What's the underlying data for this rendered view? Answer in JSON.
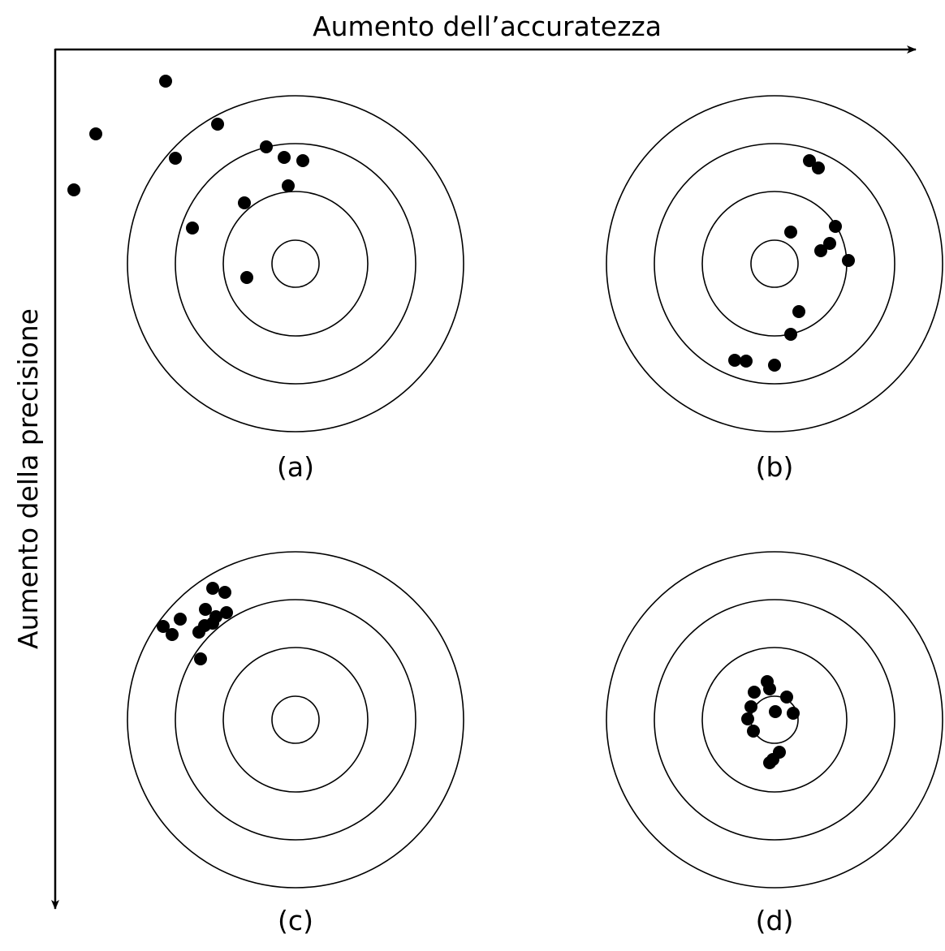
{
  "axes": {
    "horizontal_label": "Aumento dell’accuratezza",
    "vertical_label": "Aumento della precisione"
  },
  "panels": [
    {
      "id": "a",
      "caption": "(a)"
    },
    {
      "id": "b",
      "caption": "(b)"
    },
    {
      "id": "c",
      "caption": "(c)"
    },
    {
      "id": "d",
      "caption": "(d)"
    }
  ],
  "colors": {
    "ink": "#000000",
    "background": "#ffffff"
  }
}
